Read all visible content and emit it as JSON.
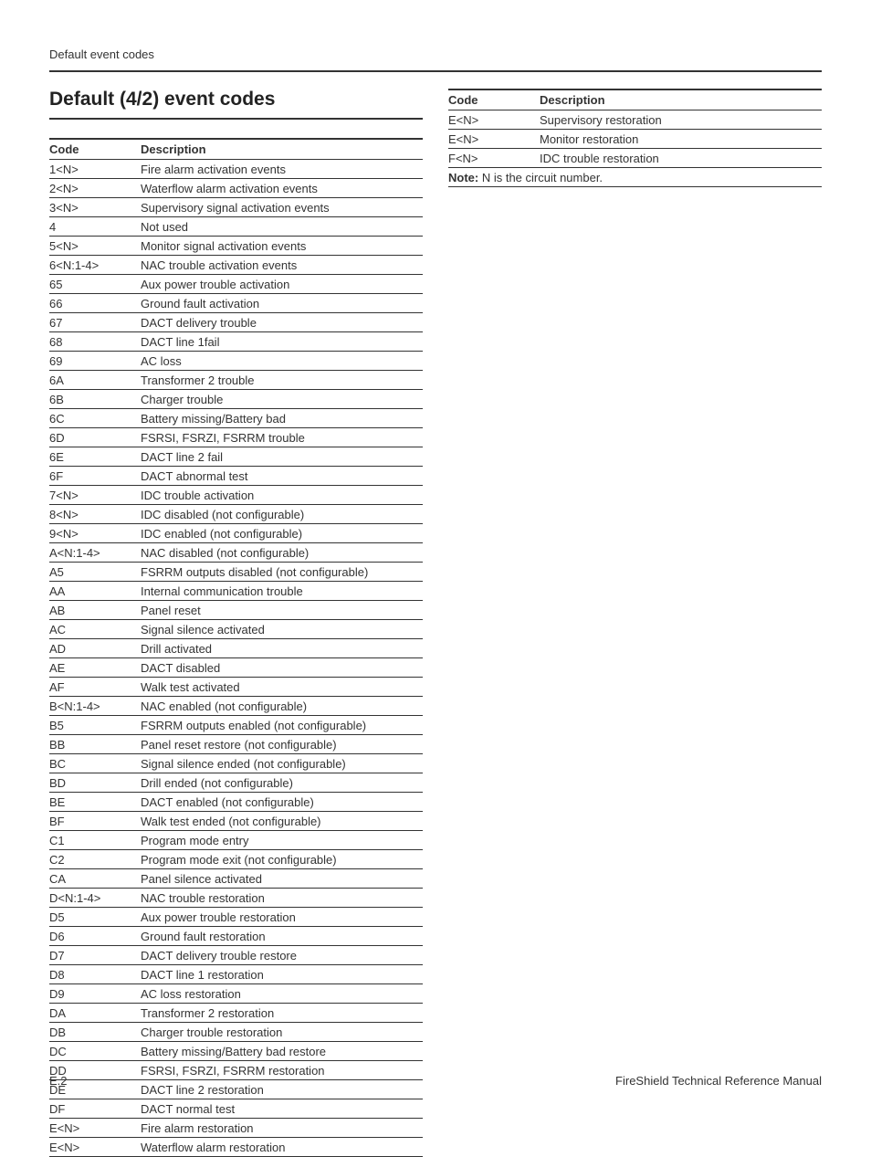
{
  "page": {
    "runningHead": "Default event codes",
    "footerLeft": "E.2",
    "footerRight": "FireShield Technical Reference Manual"
  },
  "section": {
    "title": "Default (4/2) event codes"
  },
  "tableHeaders": {
    "code": "Code",
    "description": "Description"
  },
  "tableLeft": {
    "rows": [
      {
        "code": "1<N>",
        "desc": "Fire alarm activation events"
      },
      {
        "code": "2<N>",
        "desc": "Waterflow alarm activation events"
      },
      {
        "code": "3<N>",
        "desc": "Supervisory signal activation events"
      },
      {
        "code": "4",
        "desc": "Not used"
      },
      {
        "code": "5<N>",
        "desc": "Monitor signal activation events"
      },
      {
        "code": "6<N:1-4>",
        "desc": "NAC trouble activation events"
      },
      {
        "code": "65",
        "desc": "Aux power trouble activation"
      },
      {
        "code": "66",
        "desc": "Ground fault activation"
      },
      {
        "code": "67",
        "desc": "DACT delivery trouble"
      },
      {
        "code": "68",
        "desc": "DACT line 1fail"
      },
      {
        "code": "69",
        "desc": "AC loss"
      },
      {
        "code": "6A",
        "desc": "Transformer 2 trouble"
      },
      {
        "code": "6B",
        "desc": "Charger trouble"
      },
      {
        "code": "6C",
        "desc": "Battery missing/Battery bad"
      },
      {
        "code": "6D",
        "desc": "FSRSI, FSRZI, FSRRM trouble"
      },
      {
        "code": "6E",
        "desc": "DACT line 2 fail"
      },
      {
        "code": "6F",
        "desc": "DACT abnormal test"
      },
      {
        "code": "7<N>",
        "desc": "IDC trouble activation"
      },
      {
        "code": "8<N>",
        "desc": "IDC disabled (not configurable)"
      },
      {
        "code": "9<N>",
        "desc": "IDC enabled (not configurable)"
      },
      {
        "code": "A<N:1-4>",
        "desc": "NAC disabled (not configurable)"
      },
      {
        "code": "A5",
        "desc": "FSRRM outputs disabled (not configurable)"
      },
      {
        "code": "AA",
        "desc": "Internal communication trouble"
      },
      {
        "code": "AB",
        "desc": "Panel reset"
      },
      {
        "code": "AC",
        "desc": "Signal silence activated"
      },
      {
        "code": "AD",
        "desc": "Drill activated"
      },
      {
        "code": "AE",
        "desc": "DACT disabled"
      },
      {
        "code": "AF",
        "desc": "Walk test activated"
      },
      {
        "code": "B<N:1-4>",
        "desc": "NAC enabled (not configurable)"
      },
      {
        "code": "B5",
        "desc": "FSRRM outputs enabled (not configurable)"
      },
      {
        "code": "BB",
        "desc": "Panel reset restore (not configurable)"
      },
      {
        "code": "BC",
        "desc": "Signal silence ended (not configurable)"
      },
      {
        "code": "BD",
        "desc": "Drill ended (not configurable)"
      },
      {
        "code": "BE",
        "desc": "DACT enabled (not configurable)"
      },
      {
        "code": "BF",
        "desc": "Walk test ended (not configurable)"
      },
      {
        "code": "C1",
        "desc": "Program mode entry"
      },
      {
        "code": "C2",
        "desc": "Program mode exit (not configurable)"
      },
      {
        "code": "CA",
        "desc": "Panel silence activated"
      },
      {
        "code": "D<N:1-4>",
        "desc": "NAC trouble restoration"
      },
      {
        "code": "D5",
        "desc": "Aux power trouble restoration"
      },
      {
        "code": "D6",
        "desc": "Ground fault restoration"
      },
      {
        "code": "D7",
        "desc": "DACT delivery trouble restore"
      },
      {
        "code": "D8",
        "desc": "DACT line 1 restoration"
      },
      {
        "code": "D9",
        "desc": "AC loss restoration"
      },
      {
        "code": "DA",
        "desc": "Transformer 2 restoration"
      },
      {
        "code": "DB",
        "desc": "Charger trouble restoration"
      },
      {
        "code": "DC",
        "desc": "Battery missing/Battery bad restore"
      },
      {
        "code": "DD",
        "desc": "FSRSI, FSRZI, FSRRM restoration"
      },
      {
        "code": "DE",
        "desc": "DACT line 2 restoration"
      },
      {
        "code": "DF",
        "desc": "DACT normal test"
      },
      {
        "code": "E<N>",
        "desc": "Fire alarm restoration"
      },
      {
        "code": "E<N>",
        "desc": "Waterflow alarm restoration"
      }
    ]
  },
  "tableRight": {
    "rows": [
      {
        "code": "E<N>",
        "desc": "Supervisory restoration"
      },
      {
        "code": "E<N>",
        "desc": "Monitor restoration"
      },
      {
        "code": "F<N>",
        "desc": "IDC trouble restoration"
      }
    ],
    "noteLabel": "Note:",
    "noteText": " N is the circuit number."
  },
  "style": {
    "textColor": "#333333",
    "ruleColor": "#333333",
    "background": "#ffffff",
    "bodyFontSize": 13,
    "titleFontSize": 21,
    "codeColWidth": 100
  }
}
